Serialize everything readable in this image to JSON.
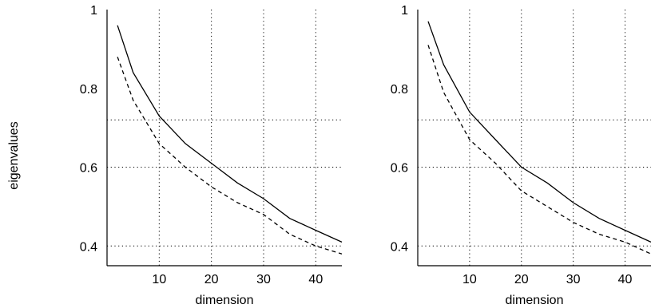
{
  "shared_ylabel": "eigenvalues",
  "chart_data": [
    {
      "type": "line",
      "xlabel": "dimension",
      "ylabel": "",
      "xlim": [
        0,
        45
      ],
      "ylim": [
        0.35,
        1.0
      ],
      "xticks": [
        10,
        20,
        30,
        40
      ],
      "xtick_labels": [
        "10",
        "20",
        "30",
        "40"
      ],
      "yticks": [
        0.4,
        0.6,
        0.8,
        1
      ],
      "ytick_labels": [
        "0.4",
        "0.6",
        "0.8",
        "1"
      ],
      "vertical_gridlines": [
        10,
        20,
        30,
        40
      ],
      "horizontal_gridlines": [
        0.4,
        0.6,
        0.72
      ],
      "grid_style": "dotted",
      "series": [
        {
          "style": "solid",
          "x": [
            2,
            5,
            10,
            15,
            20,
            25,
            30,
            35,
            40,
            45
          ],
          "y": [
            0.96,
            0.84,
            0.73,
            0.66,
            0.61,
            0.56,
            0.52,
            0.47,
            0.44,
            0.41
          ]
        },
        {
          "style": "dashed",
          "x": [
            2,
            5,
            10,
            15,
            20,
            25,
            30,
            35,
            40,
            45
          ],
          "y": [
            0.88,
            0.77,
            0.66,
            0.6,
            0.55,
            0.51,
            0.48,
            0.43,
            0.4,
            0.38
          ]
        }
      ]
    },
    {
      "type": "line",
      "xlabel": "dimension",
      "ylabel": "",
      "xlim": [
        0,
        45
      ],
      "ylim": [
        0.35,
        1.0
      ],
      "xticks": [
        10,
        20,
        30,
        40
      ],
      "xtick_labels": [
        "10",
        "20",
        "30",
        "40"
      ],
      "yticks": [
        0.4,
        0.6,
        0.8,
        1
      ],
      "ytick_labels": [
        "0.4",
        "0.6",
        "0.8",
        "1"
      ],
      "vertical_gridlines": [
        10,
        20,
        30,
        40
      ],
      "horizontal_gridlines": [
        0.4,
        0.6,
        0.72
      ],
      "grid_style": "dotted",
      "series": [
        {
          "style": "solid",
          "x": [
            2,
            5,
            10,
            15,
            20,
            25,
            30,
            35,
            40,
            45
          ],
          "y": [
            0.97,
            0.86,
            0.74,
            0.67,
            0.6,
            0.56,
            0.51,
            0.47,
            0.44,
            0.41
          ]
        },
        {
          "style": "dashed",
          "x": [
            2,
            5,
            10,
            15,
            20,
            25,
            30,
            35,
            40,
            45
          ],
          "y": [
            0.91,
            0.79,
            0.67,
            0.61,
            0.54,
            0.5,
            0.46,
            0.43,
            0.41,
            0.38
          ]
        }
      ]
    }
  ]
}
